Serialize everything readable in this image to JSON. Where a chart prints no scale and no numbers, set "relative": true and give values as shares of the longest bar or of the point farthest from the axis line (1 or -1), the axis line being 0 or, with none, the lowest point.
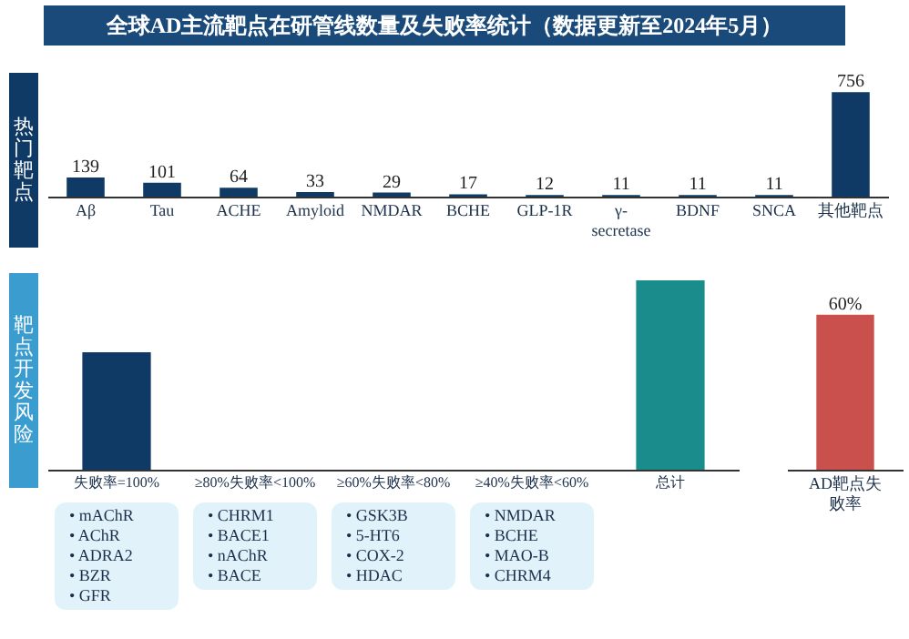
{
  "chart_data": [
    {
      "type": "bar",
      "title": "全球AD主流靶点在研管线数量及失败率统计（数据更新至2024年5月）",
      "ylabel": "热门靶点",
      "categories": [
        "Aβ",
        "Tau",
        "ACHE",
        "Amyloid",
        "NMDAR",
        "BCHE",
        "GLP-1R",
        "γ-secretase",
        "BDNF",
        "SNCA",
        "其他靶点"
      ],
      "values": [
        139,
        101,
        64,
        33,
        29,
        17,
        12,
        11,
        11,
        11,
        756
      ],
      "color": "#0f3a66",
      "data_labels": true
    },
    {
      "type": "bar",
      "ylabel": "靶点开发风险",
      "relative": true,
      "categories": [
        "失败率=100%",
        "≥80%失败率<100%",
        "≥60%失败率<80%",
        "≥40%失败率<60%",
        "总计"
      ],
      "values": [
        0.62,
        null,
        null,
        null,
        1.0
      ],
      "colors": [
        "#0f3a66",
        "#1d4f7c",
        "#2a5f8a",
        "#3a6f98",
        "#1a8c8c"
      ],
      "annotations": [
        "• mAChR\n• AChR\n• ADRA2\n• BZR\n• GFR",
        "• CHRM1\n• BACE1\n• nAChR\n• BACE",
        "• GSK3B\n• 5-HT6\n• COX-2\n• HDAC",
        "• NMDAR\n• BCHE\n• MAO-B\n• CHRM4"
      ]
    },
    {
      "type": "bar",
      "categories": [
        "AD靶点失败率"
      ],
      "values": [
        60
      ],
      "colors": [
        "#c9504c"
      ],
      "value_labels": [
        "60%"
      ]
    }
  ]
}
